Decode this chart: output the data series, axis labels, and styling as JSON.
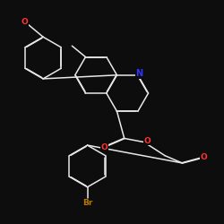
{
  "background_color": "#0d0d0d",
  "bond_color": "#e8e8e8",
  "atom_colors": {
    "O": "#ff3333",
    "N": "#3333ff",
    "Br": "#bb7700",
    "C": "#e8e8e8"
  },
  "figsize": [
    2.5,
    2.5
  ],
  "dpi": 100
}
